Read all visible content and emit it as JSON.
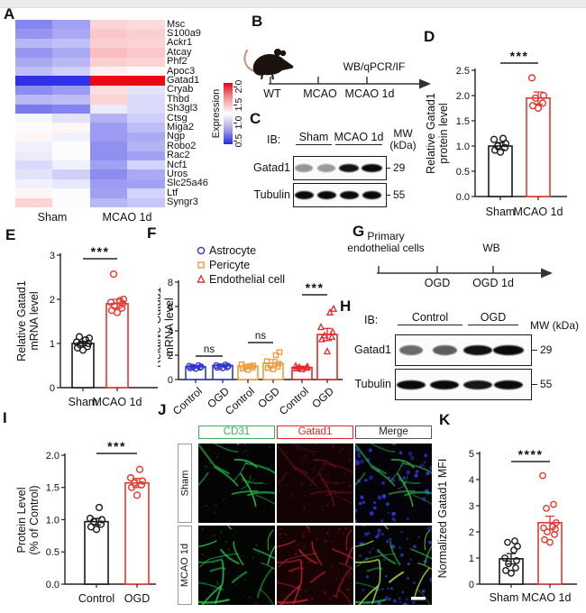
{
  "panels": {
    "A": {
      "letter": "A",
      "genes": [
        "Msc",
        "S100a9",
        "Ackr1",
        "Atcay",
        "Phf2",
        "Apoc3",
        "Gatad1",
        "Cryab",
        "Thbd",
        "Sh3gl3",
        "Ctsg",
        "Miga2",
        "Ngp",
        "Robo2",
        "Rac2",
        "Ncf1",
        "Uros",
        "Slc25a46",
        "Ltf",
        "Syngr3"
      ],
      "group_labels": [
        "Sham",
        "MCAO 1d"
      ],
      "colorbar": {
        "label": "Expression",
        "ticks": [
          "0.5",
          "1.0",
          "1.5",
          "2.0"
        ]
      },
      "values": [
        [
          0.82,
          0.92,
          1.38,
          1.36
        ],
        [
          0.88,
          0.95,
          1.42,
          1.4
        ],
        [
          1.0,
          1.03,
          1.4,
          1.38
        ],
        [
          0.88,
          0.95,
          1.45,
          1.42
        ],
        [
          0.95,
          1.0,
          1.4,
          1.38
        ],
        [
          1.02,
          1.08,
          1.3,
          1.26
        ],
        [
          0.52,
          0.52,
          2.0,
          2.0
        ],
        [
          0.85,
          0.9,
          1.35,
          1.15
        ],
        [
          1.0,
          1.02,
          1.38,
          1.12
        ],
        [
          0.78,
          0.82,
          1.18,
          1.12
        ],
        [
          1.22,
          1.15,
          0.98,
          1.08
        ],
        [
          1.24,
          1.28,
          0.9,
          1.02
        ],
        [
          1.28,
          1.2,
          0.9,
          0.95
        ],
        [
          1.2,
          1.24,
          0.86,
          0.98
        ],
        [
          1.18,
          1.24,
          0.86,
          0.92
        ],
        [
          1.12,
          1.2,
          0.92,
          1.1
        ],
        [
          1.15,
          1.08,
          0.84,
          0.95
        ],
        [
          1.2,
          1.17,
          0.9,
          0.92
        ],
        [
          1.28,
          1.24,
          0.92,
          1.1
        ],
        [
          1.38,
          1.24,
          1.0,
          1.05
        ]
      ]
    },
    "B": {
      "letter": "B",
      "timeline_labels": [
        "WT",
        "MCAO",
        "MCAO 1d"
      ],
      "annotation": "WB/qPCR/IF"
    },
    "C": {
      "letter": "C",
      "ib": "IB:",
      "groups": [
        "Sham",
        "MCAO 1d"
      ],
      "mw1": "MW",
      "mw2": "(kDa)",
      "rows": [
        {
          "name": "Gatad1",
          "mw": "29",
          "bands": [
            0.42,
            0.4,
            0.96,
            1.0
          ]
        },
        {
          "name": "Tubulin",
          "mw": "55",
          "bands": [
            1.0,
            1.0,
            1.0,
            1.0
          ]
        }
      ]
    },
    "D": {
      "letter": "D"
    },
    "E": {
      "letter": "E"
    },
    "F": {
      "letter": "F"
    },
    "G": {
      "letter": "G",
      "annotation_line1": "Primary",
      "annotation_line2": "endothelial cells",
      "annotation_wb": "WB",
      "timeline_labels": [
        "OGD",
        "OGD 1d"
      ]
    },
    "H": {
      "letter": "H",
      "ib": "IB:",
      "groups": [
        "Control",
        "OGD"
      ],
      "mw": "MW (kDa)",
      "rows": [
        {
          "name": "Gatad1",
          "mw": "29",
          "bands": [
            0.6,
            0.65,
            0.97,
            1.0
          ]
        },
        {
          "name": "Tubulin",
          "mw": "55",
          "bands": [
            1.0,
            1.0,
            0.95,
            1.0
          ]
        }
      ]
    },
    "I": {
      "letter": "I"
    },
    "J": {
      "letter": "J",
      "columns": [
        {
          "label": "CD31",
          "color": "#3cae5b"
        },
        {
          "label": "Gatad1",
          "color": "#e8262a"
        },
        {
          "label": "Merge",
          "color": "#222222"
        }
      ],
      "rows": [
        "Sham",
        "MCAO 1d"
      ]
    },
    "K": {
      "letter": "K"
    }
  },
  "chart_data": [
    {
      "id": "D",
      "type": "bar",
      "categories": [
        "Sham",
        "MCAO 1d"
      ],
      "values": [
        1.0,
        1.95
      ],
      "errors": [
        0.07,
        0.12
      ],
      "dots": [
        [
          0.88,
          0.92,
          0.97,
          1.0,
          1.05,
          1.13,
          1.15
        ],
        [
          1.75,
          1.8,
          1.85,
          1.95,
          2.0,
          2.35
        ]
      ],
      "bar_colors": [
        "#1a1a1a",
        "#e8362e"
      ],
      "markers": [
        "circle",
        "circle"
      ],
      "ylabel_lines": [
        "Relative Gatad1",
        "protein level"
      ],
      "yticks": [
        "0.0",
        "0.5",
        "1.0",
        "1.5",
        "2.0",
        "2.5"
      ],
      "ylim": [
        0,
        2.5
      ],
      "sig": [
        {
          "a": 0,
          "b": 1,
          "label": "***"
        }
      ]
    },
    {
      "id": "E",
      "type": "bar",
      "categories": [
        "Sham",
        "MCAO 1d"
      ],
      "values": [
        1.0,
        1.9
      ],
      "errors": [
        0.05,
        0.1
      ],
      "dots": [
        [
          0.85,
          0.9,
          0.93,
          0.97,
          1.0,
          1.03,
          1.08,
          1.12,
          1.15
        ],
        [
          1.7,
          1.75,
          1.8,
          1.85,
          1.9,
          1.93,
          1.97,
          2.0,
          2.57
        ]
      ],
      "bar_colors": [
        "#1a1a1a",
        "#e8362e"
      ],
      "markers": [
        "circle",
        "circle"
      ],
      "ylabel_lines": [
        "Relative Gatad1",
        "mRNA level"
      ],
      "yticks": [
        "0",
        "1",
        "2",
        "3"
      ],
      "ylim": [
        0,
        3
      ],
      "sig": [
        {
          "a": 0,
          "b": 1,
          "label": "***"
        }
      ]
    },
    {
      "id": "F",
      "type": "bar",
      "legend": [
        {
          "label": "Astrocyte",
          "marker": "circle",
          "color": "#3238cf"
        },
        {
          "label": "Pericyte",
          "marker": "square",
          "color": "#f09c3c"
        },
        {
          "label": "Endothelial cell",
          "marker": "triangle",
          "color": "#e8262a"
        }
      ],
      "categories": [
        "Control",
        "OGD",
        "Control",
        "OGD",
        "Control",
        "OGD"
      ],
      "values": [
        1.05,
        1.15,
        1.1,
        1.35,
        1.0,
        3.7
      ],
      "errors": [
        0.1,
        0.1,
        0.15,
        0.3,
        0.08,
        0.5
      ],
      "dots": [
        [
          0.9,
          0.95,
          1.0,
          1.02,
          1.05,
          1.1,
          1.15
        ],
        [
          0.95,
          1.0,
          1.03,
          1.07,
          1.1,
          1.15,
          1.2
        ],
        [
          0.8,
          0.9,
          0.97,
          1.05,
          1.15,
          1.25,
          1.1
        ],
        [
          0.85,
          0.95,
          1.05,
          1.15,
          1.3,
          1.5,
          2.0,
          2.25
        ],
        [
          0.85,
          0.9,
          0.95,
          1.0,
          1.05,
          1.1
        ],
        [
          2.3,
          3.3,
          3.5,
          3.6,
          3.9,
          4.3,
          5.5,
          5.8
        ]
      ],
      "bar_colors": [
        "#3238cf",
        "#3238cf",
        "#f09c3c",
        "#f09c3c",
        "#e8262a",
        "#e8262a"
      ],
      "markers": [
        "circle",
        "circle",
        "square",
        "square",
        "triangle",
        "triangle"
      ],
      "ylabel_lines": [
        "Relative Gatad1",
        "mRNA level"
      ],
      "ylabel_italic_word": "Gatad1",
      "yticks": [
        "0",
        "2",
        "4",
        "6",
        "8"
      ],
      "ylim": [
        0,
        8
      ],
      "sig": [
        {
          "a": 0,
          "b": 1,
          "label": "ns"
        },
        {
          "a": 2,
          "b": 3,
          "label": "ns"
        },
        {
          "a": 4,
          "b": 5,
          "label": "***"
        }
      ]
    },
    {
      "id": "I",
      "type": "bar",
      "categories": [
        "Control",
        "OGD"
      ],
      "values": [
        0.97,
        1.57
      ],
      "errors": [
        0.05,
        0.07
      ],
      "dots": [
        [
          0.85,
          0.89,
          0.93,
          0.97,
          1.0,
          1.02,
          1.19
        ],
        [
          1.38,
          1.5,
          1.54,
          1.57,
          1.6,
          1.65,
          1.78
        ]
      ],
      "bar_colors": [
        "#1a1a1a",
        "#e8362e"
      ],
      "markers": [
        "circle",
        "circle"
      ],
      "ylabel_lines": [
        "Protein Level",
        "(% of Control)"
      ],
      "yticks": [
        "0.0",
        "0.5",
        "1.0",
        "1.5",
        "2.0"
      ],
      "ylim": [
        0,
        2
      ],
      "sig": [
        {
          "a": 0,
          "b": 1,
          "label": "***"
        }
      ]
    },
    {
      "id": "K",
      "type": "bar",
      "categories": [
        "Sham",
        "MCAO 1d"
      ],
      "values": [
        0.97,
        2.35
      ],
      "errors": [
        0.2,
        0.25
      ],
      "dots": [
        [
          0.42,
          0.52,
          0.62,
          0.78,
          0.9,
          1.0,
          1.3,
          1.45,
          1.6,
          1.65
        ],
        [
          1.6,
          1.7,
          1.9,
          2.0,
          2.1,
          2.15,
          2.2,
          2.35,
          2.9,
          3.05,
          4.15
        ]
      ],
      "bar_colors": [
        "#1a1a1a",
        "#e8362e"
      ],
      "markers": [
        "circle",
        "circle"
      ],
      "ylabel_lines": [
        "Normalized Gatad1 MFI"
      ],
      "yticks": [
        "0",
        "1",
        "2",
        "3",
        "4",
        "5"
      ],
      "ylim": [
        0,
        5
      ],
      "sig": [
        {
          "a": 0,
          "b": 1,
          "label": "****"
        }
      ]
    }
  ]
}
